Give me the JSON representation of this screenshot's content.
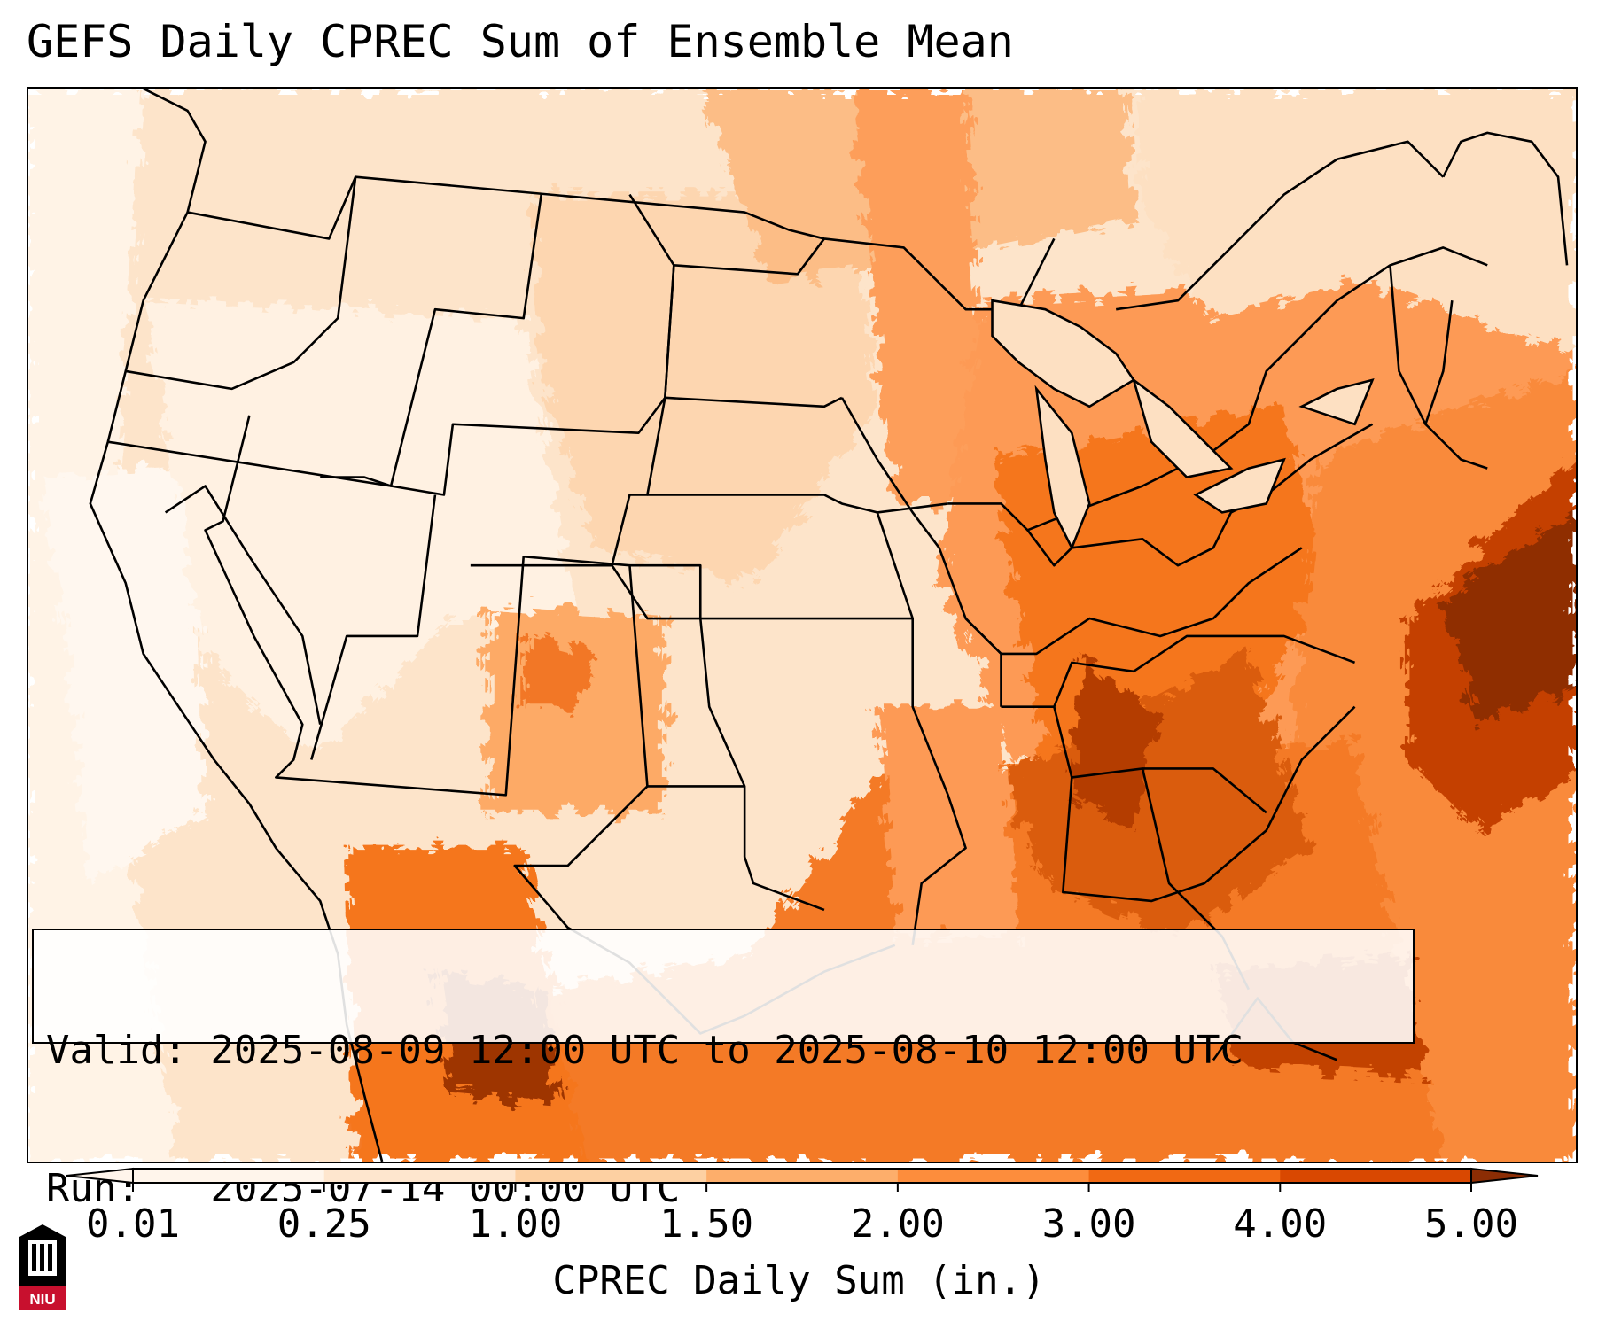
{
  "title": "GEFS Daily CPREC Sum of Ensemble Mean",
  "valid": {
    "valid_line": "Valid: 2025-08-09 12:00 UTC to 2025-08-10 12:00 UTC",
    "run_line": "Run:   2025-07-14 00:00 UTC"
  },
  "colorbar": {
    "label": "CPREC Daily Sum (in.)",
    "ticks": [
      "0.01",
      "0.25",
      "1.00",
      "1.50",
      "2.00",
      "3.00",
      "4.00",
      "5.00"
    ],
    "colors": [
      "#fff5eb",
      "#fee6ce",
      "#fdd0a2",
      "#fdae6b",
      "#fd8d3c",
      "#f16913",
      "#d94801",
      "#8c2d04"
    ],
    "extend": "both"
  },
  "map": {
    "region": "Continental United States",
    "features": [
      "state-borders",
      "country-borders",
      "coastlines",
      "great-lakes"
    ]
  },
  "logo": {
    "icon": "niu-logo",
    "text": "NIU",
    "color": "#c8102e"
  }
}
